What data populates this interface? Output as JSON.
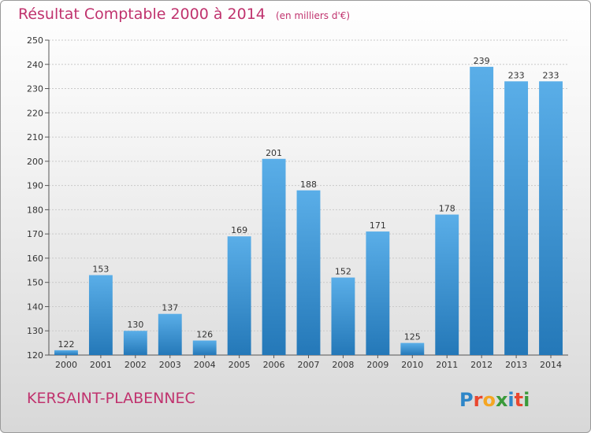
{
  "header": {
    "title": "Résultat Comptable 2000 à 2014",
    "subtitle": "(en milliers d'€)"
  },
  "footer": {
    "location": "KERSAINT-PLABENNEC",
    "brand": "Proxiti"
  },
  "colors": {
    "title": "#c0336e",
    "bar_top": "#5aaee8",
    "bar_bottom": "#2478b8"
  },
  "chart_data": {
    "type": "bar",
    "title": "Résultat Comptable 2000 à 2014",
    "subtitle": "(en milliers d'€)",
    "categories": [
      "2000",
      "2001",
      "2002",
      "2003",
      "2004",
      "2005",
      "2006",
      "2007",
      "2008",
      "2009",
      "2010",
      "2011",
      "2012",
      "2013",
      "2014"
    ],
    "values": [
      122,
      153,
      130,
      137,
      126,
      169,
      201,
      188,
      152,
      171,
      125,
      178,
      239,
      233,
      233
    ],
    "ylim": [
      120,
      250
    ],
    "yticks": [
      120,
      130,
      140,
      150,
      160,
      170,
      180,
      190,
      200,
      210,
      220,
      230,
      240,
      250
    ],
    "xlabel": "",
    "ylabel": "",
    "grid": true
  }
}
